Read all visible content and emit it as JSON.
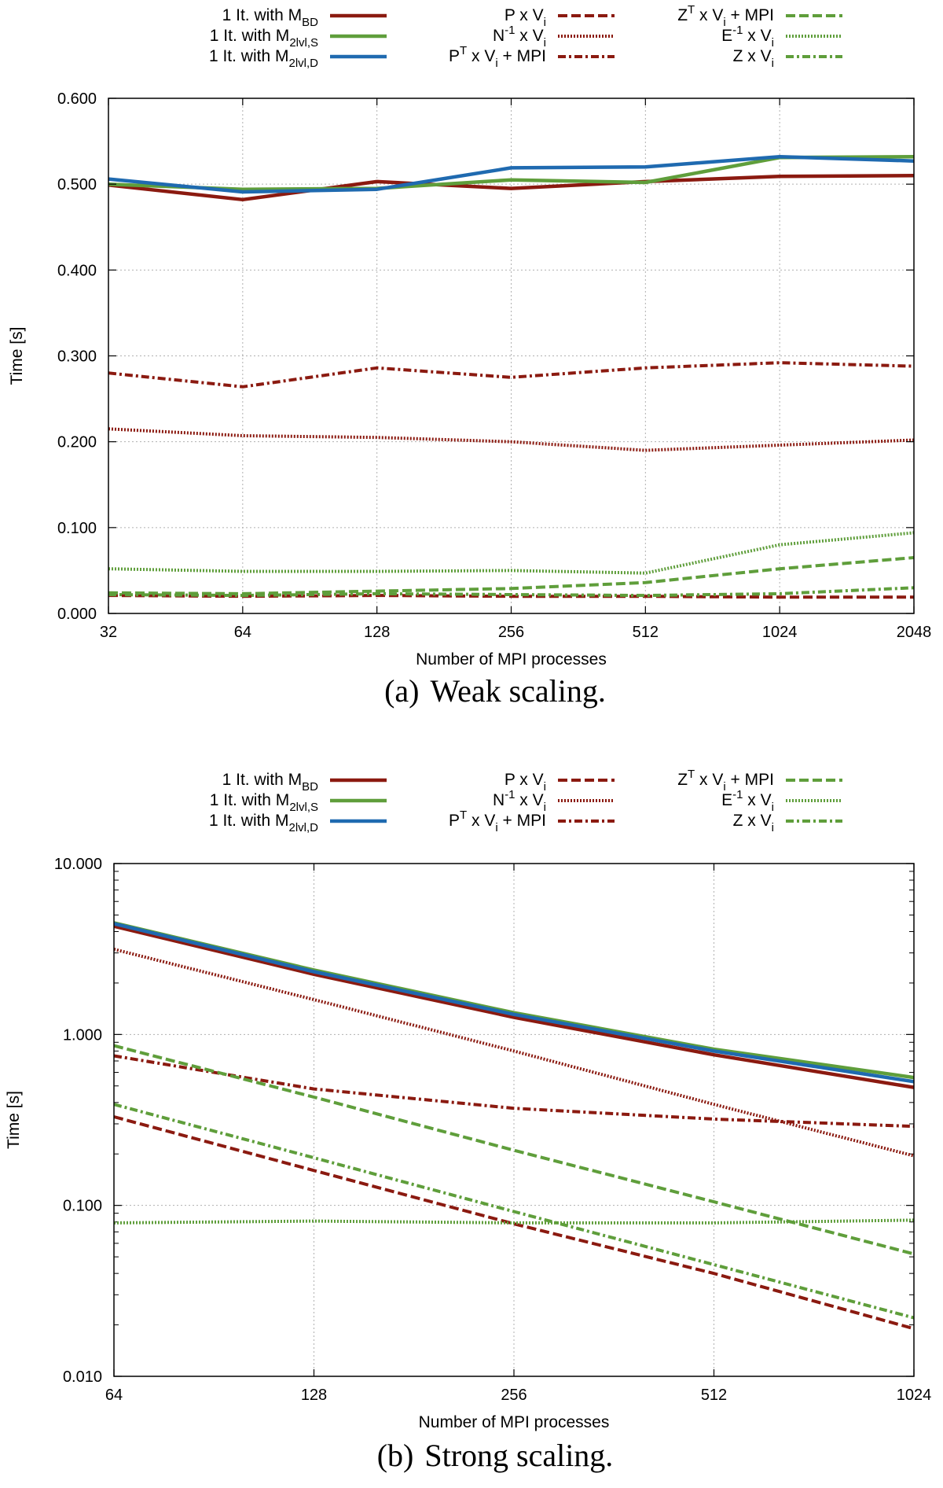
{
  "colors": {
    "red": "#8b1a10",
    "green": "#5f9e3b",
    "blue": "#1f6ab0",
    "grid": "#b0b0b0"
  },
  "chart_data": [
    {
      "type": "line",
      "caption_label": "(a)",
      "caption_text": "Weak scaling.",
      "xlabel": "Number of MPI processes",
      "ylabel": "Time [s]",
      "yscale": "linear",
      "ylim": [
        0,
        0.6
      ],
      "x": [
        32,
        64,
        128,
        256,
        512,
        1024,
        2048
      ],
      "xticks": [
        "32",
        "64",
        "128",
        "256",
        "512",
        "1024",
        "2048"
      ],
      "yticks": [
        "0.000",
        "0.100",
        "0.200",
        "0.300",
        "0.400",
        "0.500",
        "0.600"
      ],
      "ytick_values": [
        0,
        0.1,
        0.2,
        0.3,
        0.4,
        0.5,
        0.6
      ],
      "grid": true,
      "series": [
        {
          "name": "1 It. with M",
          "sub": "BD",
          "color": "red",
          "dash": "solid",
          "values": [
            0.499,
            0.482,
            0.503,
            0.495,
            0.503,
            0.509,
            0.51
          ]
        },
        {
          "name": "1 It. with M",
          "sub": "2lvl,S",
          "color": "green",
          "dash": "solid",
          "values": [
            0.5,
            0.494,
            0.495,
            0.505,
            0.502,
            0.531,
            0.532
          ]
        },
        {
          "name": "1 It. with M",
          "sub": "2lvl,D",
          "color": "blue",
          "dash": "solid",
          "values": [
            0.506,
            0.491,
            0.494,
            0.519,
            0.52,
            0.532,
            0.527
          ]
        },
        {
          "name": "P x V",
          "sub": "i",
          "color": "red",
          "dash": "dashed",
          "values": [
            0.021,
            0.02,
            0.021,
            0.02,
            0.02,
            0.019,
            0.019
          ]
        },
        {
          "name": "N x V",
          "sup1": "-1",
          "sub": "i",
          "color": "red",
          "dash": "dotted",
          "values": [
            0.215,
            0.207,
            0.205,
            0.2,
            0.19,
            0.196,
            0.202
          ]
        },
        {
          "name": "P x V + MPI",
          "sup1": "T",
          "sub": "i",
          "color": "red",
          "dash": "dashdot",
          "values": [
            0.28,
            0.264,
            0.286,
            0.275,
            0.286,
            0.292,
            0.288
          ]
        },
        {
          "name": "Z x V + MPI",
          "sup1": "T",
          "sub": "i",
          "color": "green",
          "dash": "dashed",
          "values": [
            0.024,
            0.023,
            0.026,
            0.029,
            0.036,
            0.052,
            0.065
          ]
        },
        {
          "name": "E x V",
          "sup1": "-1",
          "sub": "i",
          "color": "green",
          "dash": "dotted",
          "values": [
            0.052,
            0.049,
            0.049,
            0.05,
            0.047,
            0.08,
            0.094
          ]
        },
        {
          "name": "Z x V",
          "sub": "i",
          "color": "green",
          "dash": "dashdot",
          "values": [
            0.022,
            0.021,
            0.023,
            0.022,
            0.021,
            0.023,
            0.03
          ]
        }
      ]
    },
    {
      "type": "line",
      "caption_label": "(b)",
      "caption_text": "Strong scaling.",
      "xlabel": "Number of MPI processes",
      "ylabel": "Time [s]",
      "yscale": "log",
      "ylim": [
        0.01,
        10
      ],
      "x": [
        64,
        128,
        256,
        512,
        1024
      ],
      "xticks": [
        "64",
        "128",
        "256",
        "512",
        "1024"
      ],
      "yticks": [
        "0.010",
        "0.100",
        "1.000",
        "10.000"
      ],
      "ytick_values": [
        0.01,
        0.1,
        1,
        10
      ],
      "grid": true,
      "series": [
        {
          "name": "1 It. with M",
          "sub": "BD",
          "color": "red",
          "dash": "solid",
          "values": [
            4.3,
            2.25,
            1.26,
            0.76,
            0.49
          ]
        },
        {
          "name": "1 It. with M",
          "sub": "2lvl,S",
          "color": "green",
          "dash": "solid",
          "values": [
            4.5,
            2.38,
            1.34,
            0.82,
            0.56
          ]
        },
        {
          "name": "1 It. with M",
          "sub": "2lvl,D",
          "color": "blue",
          "dash": "solid",
          "values": [
            4.45,
            2.33,
            1.31,
            0.8,
            0.53
          ]
        },
        {
          "name": "P x V",
          "sub": "i",
          "color": "red",
          "dash": "dashed",
          "values": [
            0.33,
            0.16,
            0.078,
            0.04,
            0.019
          ]
        },
        {
          "name": "N x V",
          "sup1": "-1",
          "sub": "i",
          "color": "red",
          "dash": "dotted",
          "values": [
            3.15,
            1.6,
            0.8,
            0.39,
            0.195
          ]
        },
        {
          "name": "P x V + MPI",
          "sup1": "T",
          "sub": "i",
          "color": "red",
          "dash": "dashdot",
          "values": [
            0.75,
            0.48,
            0.37,
            0.32,
            0.29
          ]
        },
        {
          "name": "Z x V + MPI",
          "sup1": "T",
          "sub": "i",
          "color": "green",
          "dash": "dashed",
          "values": [
            0.86,
            0.43,
            0.21,
            0.105,
            0.052
          ]
        },
        {
          "name": "E x V",
          "sup1": "-1",
          "sub": "i",
          "color": "green",
          "dash": "dotted",
          "values": [
            0.079,
            0.081,
            0.079,
            0.079,
            0.082
          ]
        },
        {
          "name": "Z x V",
          "sub": "i",
          "color": "green",
          "dash": "dashdot",
          "values": [
            0.39,
            0.19,
            0.092,
            0.045,
            0.022
          ]
        }
      ]
    }
  ]
}
